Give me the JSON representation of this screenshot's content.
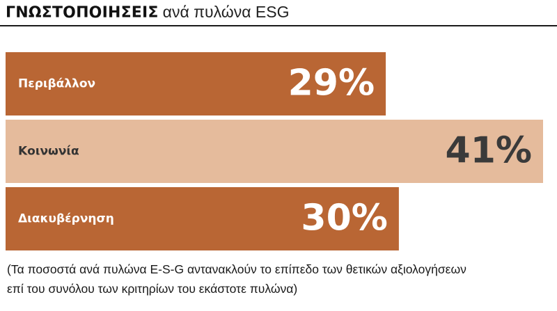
{
  "header": {
    "title_strong": "ΓΝΩΣΤΟΠΟΙΗΣΕΙΣ",
    "title_light": "ανά πυλώνα ESG"
  },
  "footnote": {
    "line1": "(Τα ποσοστά ανά πυλώνα E-S-G αντανακλούν το επίπεδο των θετικών αξιολογήσεων",
    "line2": "επί του συνόλου των κριτηρίων του εκάστοτε πυλώνα)"
  },
  "colors": {
    "dark_bar": "#b96634",
    "light_bar": "#e5bb9c",
    "dark_bar_label": "#ffffff",
    "light_bar_label": "#333333",
    "light_bar_value": "#3a3a3a"
  },
  "chart_data": {
    "type": "bar",
    "orientation": "horizontal",
    "categories": [
      "Περιβάλλον",
      "Κοινωνία",
      "Διακυβέρνηση"
    ],
    "values": [
      29,
      41,
      30
    ],
    "value_labels": [
      "29%",
      "41%",
      "30%"
    ],
    "highlight": [
      false,
      true,
      false
    ],
    "xlim": [
      0,
      41
    ],
    "grid": false,
    "legend": "none"
  }
}
